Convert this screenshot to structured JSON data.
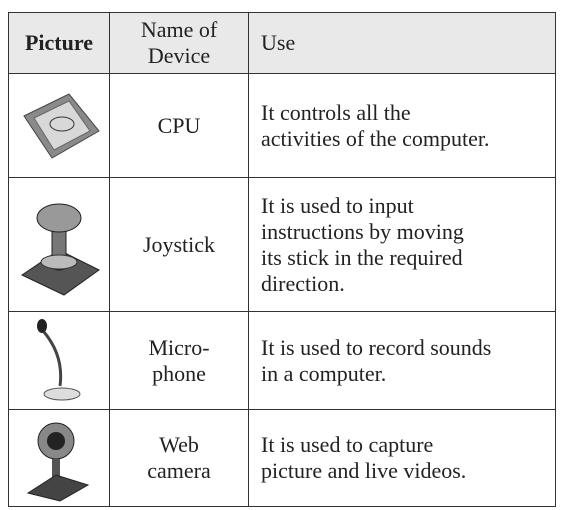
{
  "table": {
    "header": [
      [
        "Picture"
      ],
      [
        "Name of",
        "Device"
      ],
      [
        "Use"
      ]
    ],
    "rows": [
      {
        "device": [
          "CPU"
        ],
        "use": [
          "It controls all the",
          "activities of the computer."
        ]
      },
      {
        "device": [
          "Joystick"
        ],
        "use": [
          "It is used to input",
          "instructions by moving",
          "its stick in the required",
          "direction."
        ]
      },
      {
        "device": [
          "Micro-",
          "phone"
        ],
        "use": [
          "It is used to record sounds",
          "in a computer."
        ]
      },
      {
        "device": [
          "Web",
          "camera"
        ],
        "use": [
          "It is used to capture",
          "picture and live videos."
        ]
      }
    ]
  }
}
